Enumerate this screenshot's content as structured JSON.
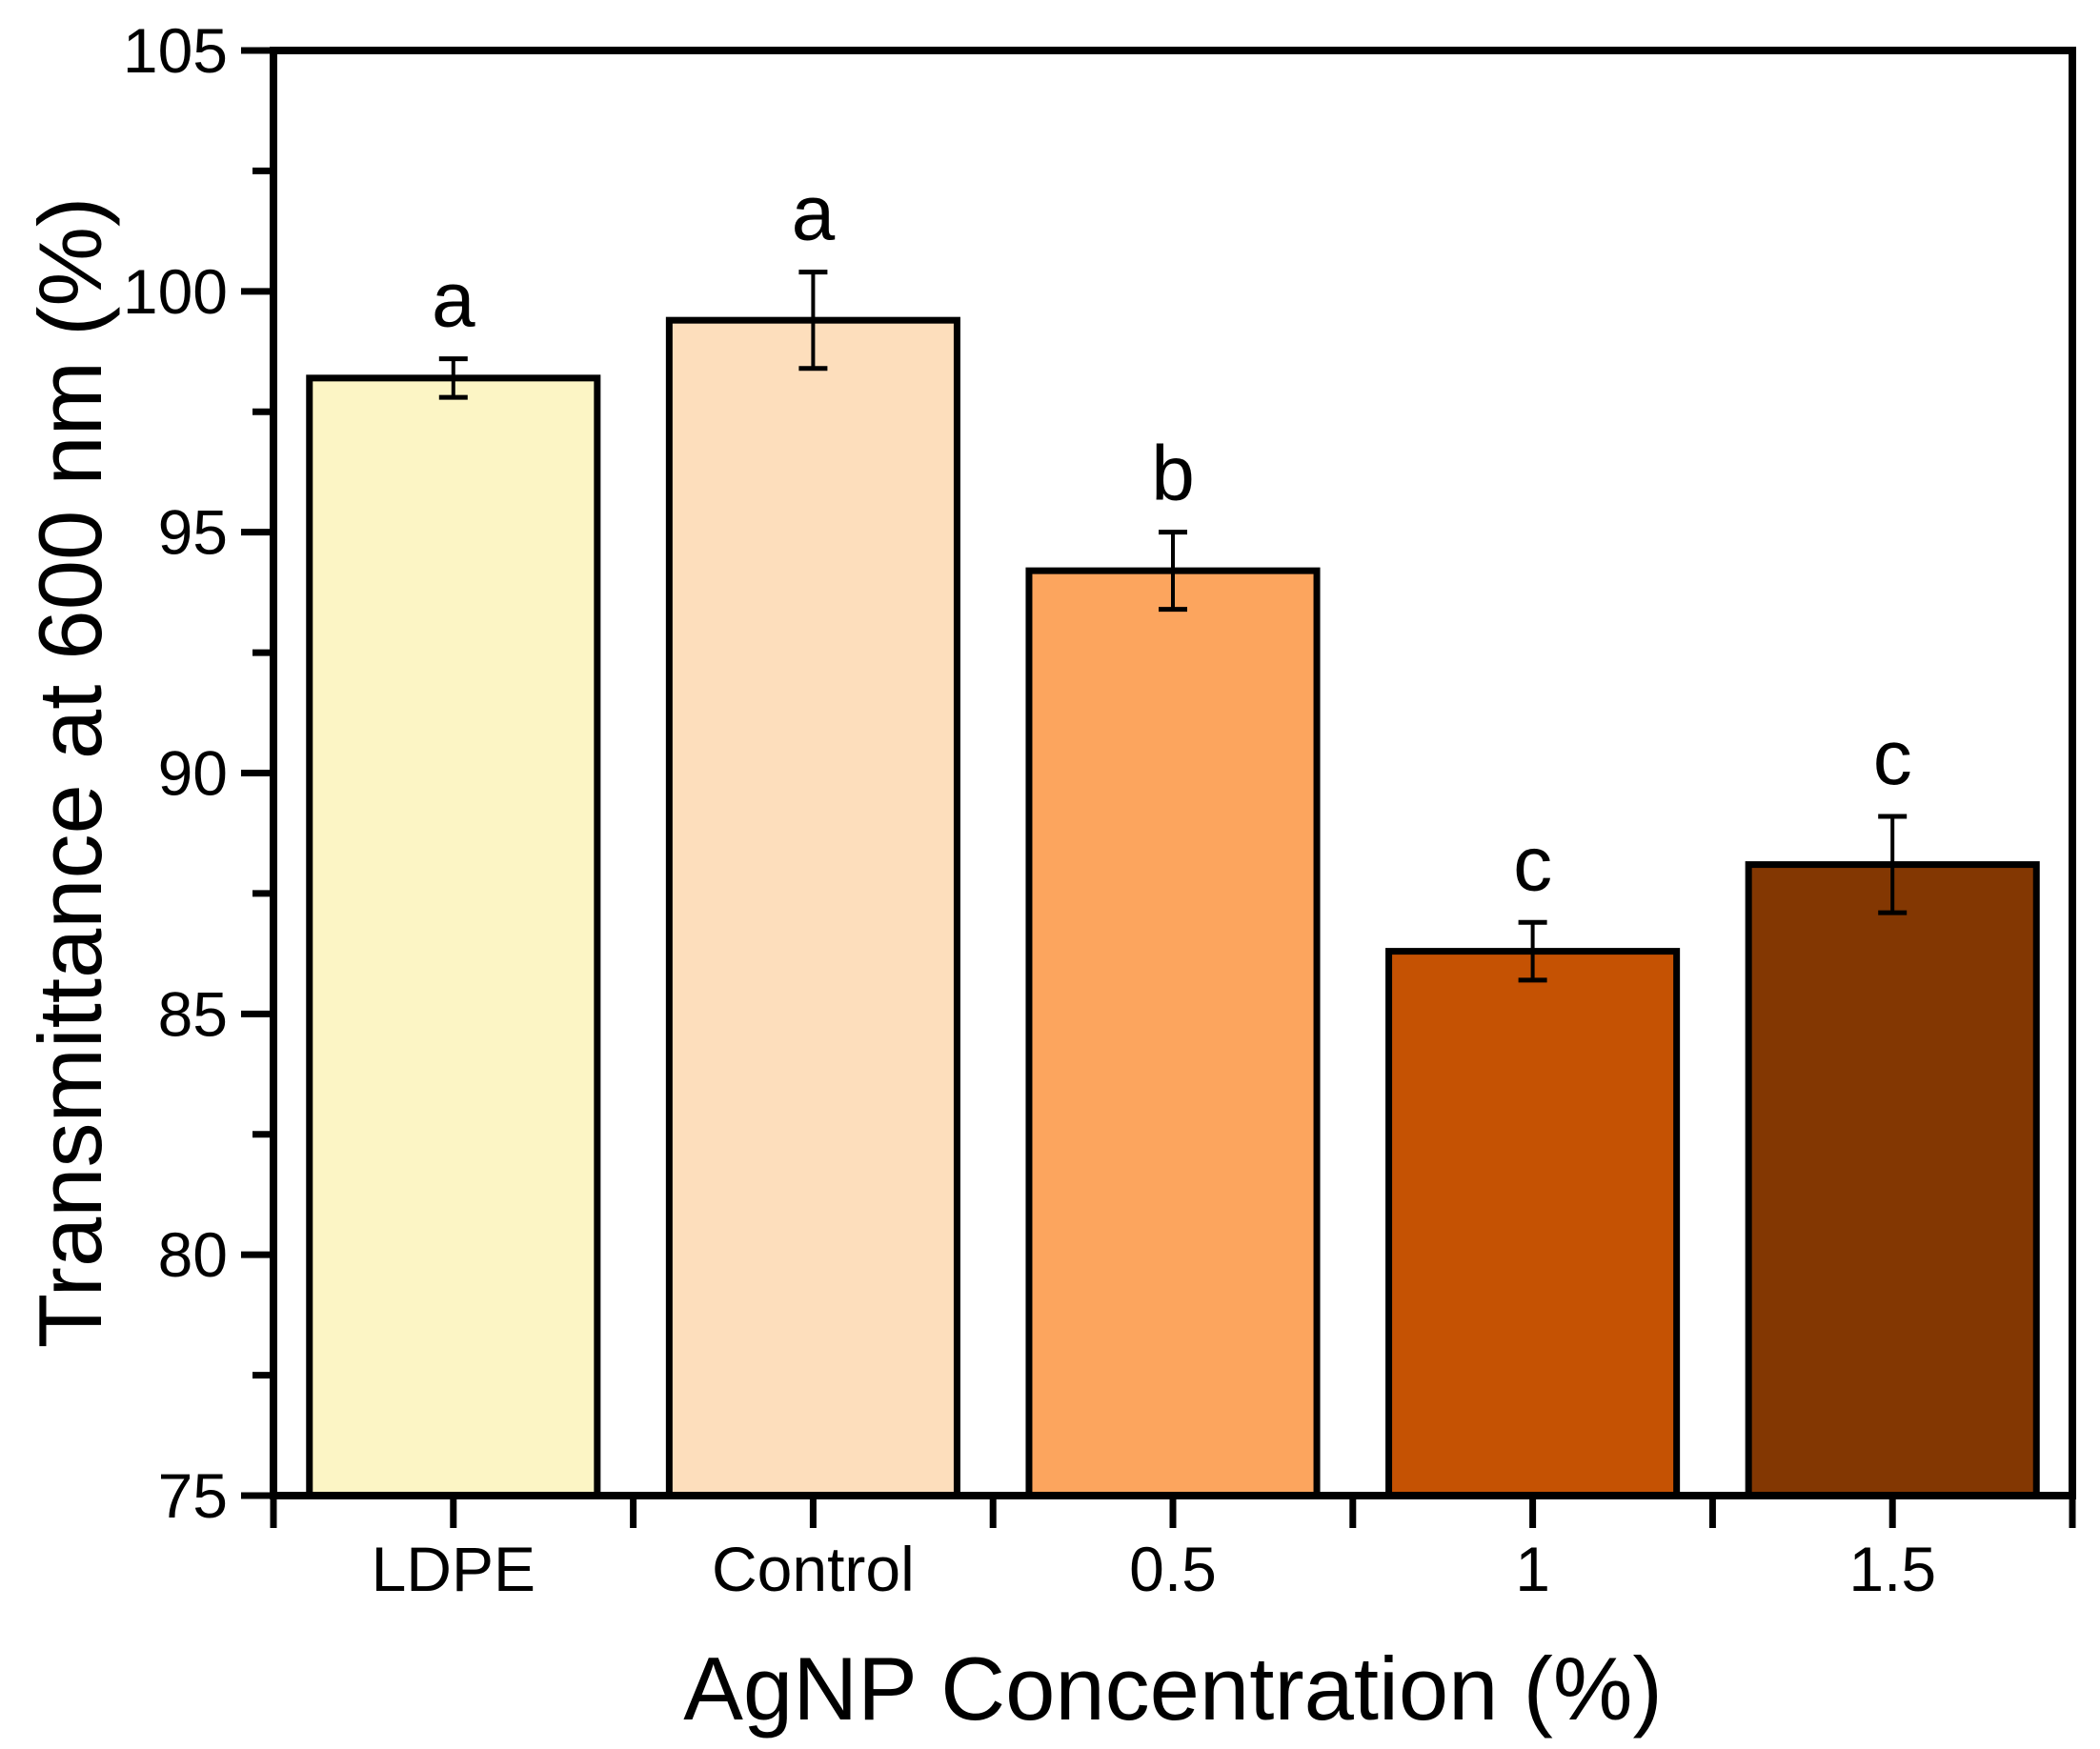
{
  "figure": {
    "background": "#FFFFFF",
    "frame_color": "#000000"
  },
  "chart_data": {
    "type": "bar",
    "title": "",
    "xlabel": "AgNP Concentration (%)",
    "ylabel": "Transmittance at 600 nm (%)",
    "categories": [
      "LDPE",
      "Control",
      "0.5",
      "1",
      "1.5"
    ],
    "values": [
      98.2,
      99.4,
      94.2,
      86.3,
      88.1
    ],
    "errors": [
      0.4,
      1.0,
      0.8,
      0.6,
      1.0
    ],
    "significance_letters": [
      "a",
      "a",
      "b",
      "c",
      "c"
    ],
    "bar_colors": [
      "#FCF5C5",
      "#FDDEBC",
      "#FCA55E",
      "#C55203",
      "#833702"
    ],
    "bar_edge_color": "#000000",
    "error_bar_color": "#000000",
    "ylim": [
      75,
      105
    ],
    "y_major_ticks": [
      75,
      80,
      85,
      90,
      95,
      100,
      105
    ],
    "y_minor_ticks": [
      77.5,
      82.5,
      87.5,
      92.5,
      97.5,
      102.5
    ],
    "grid": false,
    "legend": null
  }
}
